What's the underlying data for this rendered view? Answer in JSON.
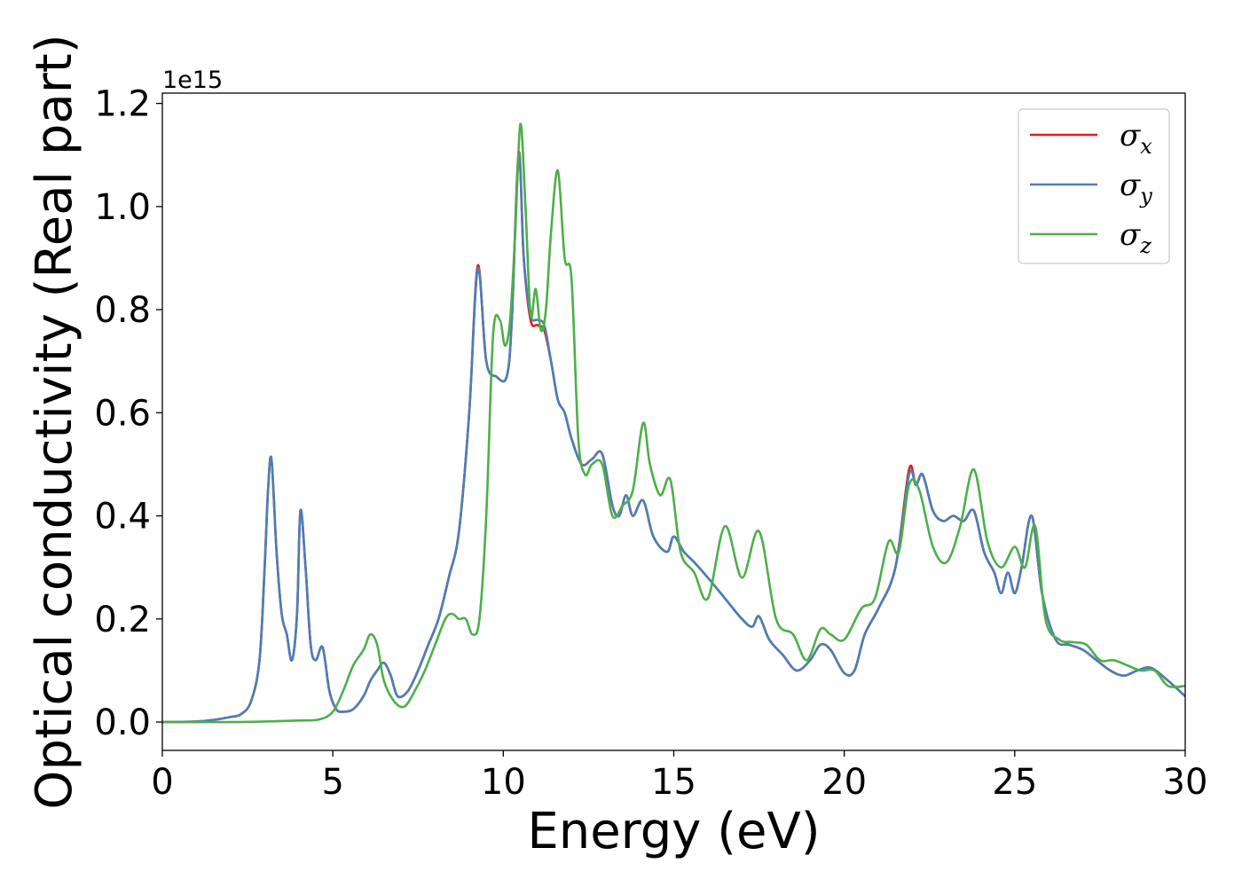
{
  "chart_data": {
    "type": "line",
    "xlabel": "Energy (eV)",
    "ylabel": "Optical conductivity (Real part)",
    "offset_label": "1e15",
    "y_scale_factor": 1000000000000000.0,
    "xlim": [
      0,
      30
    ],
    "ylim": [
      -0.055,
      1.22
    ],
    "xticks": [
      0,
      5,
      10,
      15,
      20,
      25,
      30
    ],
    "yticks": [
      0.0,
      0.2,
      0.4,
      0.6,
      0.8,
      1.0,
      1.2
    ],
    "ytick_labels": [
      "0.0",
      "0.2",
      "0.4",
      "0.6",
      "0.8",
      "1.0",
      "1.2"
    ],
    "grid": false,
    "legend_position": "top-right",
    "series": [
      {
        "name": "σx",
        "legend_base": "σ",
        "legend_sub": "x",
        "color": "#e41a1c",
        "x": [
          0,
          1,
          1.5,
          2,
          2.3,
          2.6,
          2.85,
          3.0,
          3.1,
          3.2,
          3.35,
          3.5,
          3.65,
          3.8,
          3.95,
          4.05,
          4.2,
          4.35,
          4.5,
          4.7,
          4.9,
          5.1,
          5.3,
          5.6,
          5.9,
          6.1,
          6.3,
          6.5,
          6.7,
          6.9,
          7.2,
          7.5,
          7.8,
          8.1,
          8.4,
          8.7,
          9.0,
          9.25,
          9.5,
          9.8,
          10.1,
          10.25,
          10.45,
          10.6,
          10.8,
          11.0,
          11.2,
          11.4,
          11.6,
          11.8,
          12.0,
          12.3,
          12.6,
          12.9,
          13.2,
          13.4,
          13.6,
          13.8,
          14.1,
          14.4,
          14.8,
          15.0,
          15.3,
          15.6,
          16.0,
          16.5,
          17.0,
          17.3,
          17.5,
          17.8,
          18.2,
          18.6,
          19.0,
          19.3,
          19.6,
          20.0,
          20.3,
          20.6,
          21.0,
          21.5,
          21.9,
          22.1,
          22.3,
          22.6,
          22.9,
          23.2,
          23.5,
          23.8,
          24.1,
          24.4,
          24.6,
          24.8,
          25.0,
          25.2,
          25.5,
          25.8,
          26.2,
          26.6,
          27.0,
          27.4,
          27.8,
          28.2,
          28.6,
          29.0,
          29.5,
          30.0
        ],
        "y": [
          0.0,
          0.001,
          0.004,
          0.01,
          0.015,
          0.04,
          0.12,
          0.3,
          0.45,
          0.51,
          0.33,
          0.21,
          0.17,
          0.12,
          0.21,
          0.41,
          0.3,
          0.15,
          0.12,
          0.145,
          0.06,
          0.025,
          0.02,
          0.025,
          0.05,
          0.08,
          0.1,
          0.115,
          0.09,
          0.05,
          0.06,
          0.1,
          0.15,
          0.2,
          0.28,
          0.37,
          0.6,
          0.885,
          0.7,
          0.67,
          0.67,
          0.78,
          1.105,
          0.9,
          0.78,
          0.77,
          0.76,
          0.7,
          0.625,
          0.6,
          0.55,
          0.5,
          0.51,
          0.52,
          0.42,
          0.4,
          0.44,
          0.4,
          0.43,
          0.36,
          0.33,
          0.36,
          0.33,
          0.31,
          0.28,
          0.24,
          0.2,
          0.185,
          0.205,
          0.16,
          0.13,
          0.1,
          0.12,
          0.15,
          0.14,
          0.095,
          0.1,
          0.17,
          0.22,
          0.3,
          0.49,
          0.46,
          0.48,
          0.41,
          0.39,
          0.4,
          0.39,
          0.41,
          0.33,
          0.29,
          0.25,
          0.29,
          0.25,
          0.3,
          0.4,
          0.25,
          0.16,
          0.15,
          0.14,
          0.12,
          0.1,
          0.09,
          0.1,
          0.105,
          0.08,
          0.05
        ]
      },
      {
        "name": "σy",
        "legend_base": "σ",
        "legend_sub": "y",
        "color": "#4a7fb5",
        "x": [
          0,
          1,
          1.5,
          2,
          2.3,
          2.6,
          2.85,
          3.0,
          3.1,
          3.2,
          3.35,
          3.5,
          3.65,
          3.8,
          3.95,
          4.05,
          4.2,
          4.35,
          4.5,
          4.7,
          4.9,
          5.1,
          5.3,
          5.6,
          5.9,
          6.1,
          6.3,
          6.5,
          6.7,
          6.9,
          7.2,
          7.5,
          7.8,
          8.1,
          8.4,
          8.7,
          9.0,
          9.25,
          9.5,
          9.8,
          10.1,
          10.25,
          10.45,
          10.6,
          10.8,
          11.0,
          11.2,
          11.4,
          11.6,
          11.8,
          12.0,
          12.3,
          12.6,
          12.9,
          13.2,
          13.4,
          13.6,
          13.8,
          14.1,
          14.4,
          14.8,
          15.0,
          15.3,
          15.6,
          16.0,
          16.5,
          17.0,
          17.3,
          17.5,
          17.8,
          18.2,
          18.6,
          19.0,
          19.3,
          19.6,
          20.0,
          20.3,
          20.6,
          21.0,
          21.5,
          21.9,
          22.1,
          22.3,
          22.6,
          22.9,
          23.2,
          23.5,
          23.8,
          24.1,
          24.4,
          24.6,
          24.8,
          25.0,
          25.2,
          25.5,
          25.8,
          26.2,
          26.6,
          27.0,
          27.4,
          27.8,
          28.2,
          28.6,
          29.0,
          29.5,
          30.0
        ],
        "y": [
          0.0,
          0.001,
          0.004,
          0.01,
          0.015,
          0.04,
          0.12,
          0.3,
          0.45,
          0.51,
          0.33,
          0.21,
          0.17,
          0.12,
          0.21,
          0.41,
          0.3,
          0.15,
          0.12,
          0.145,
          0.06,
          0.025,
          0.02,
          0.025,
          0.05,
          0.08,
          0.1,
          0.115,
          0.09,
          0.05,
          0.06,
          0.1,
          0.15,
          0.2,
          0.28,
          0.37,
          0.6,
          0.88,
          0.7,
          0.67,
          0.67,
          0.78,
          1.1,
          0.9,
          0.79,
          0.78,
          0.77,
          0.7,
          0.625,
          0.6,
          0.55,
          0.5,
          0.51,
          0.52,
          0.42,
          0.4,
          0.44,
          0.4,
          0.43,
          0.36,
          0.33,
          0.36,
          0.33,
          0.31,
          0.28,
          0.24,
          0.2,
          0.185,
          0.205,
          0.16,
          0.13,
          0.1,
          0.12,
          0.15,
          0.14,
          0.095,
          0.1,
          0.17,
          0.22,
          0.3,
          0.48,
          0.46,
          0.48,
          0.41,
          0.39,
          0.4,
          0.39,
          0.41,
          0.33,
          0.29,
          0.25,
          0.29,
          0.25,
          0.3,
          0.4,
          0.25,
          0.16,
          0.15,
          0.14,
          0.12,
          0.1,
          0.09,
          0.1,
          0.105,
          0.08,
          0.05
        ]
      },
      {
        "name": "σz",
        "legend_base": "σ",
        "legend_sub": "z",
        "color": "#4daf4a",
        "x": [
          0,
          2,
          3,
          4,
          4.6,
          5.0,
          5.3,
          5.6,
          5.9,
          6.1,
          6.3,
          6.5,
          6.8,
          7.1,
          7.4,
          7.7,
          8.0,
          8.3,
          8.5,
          8.7,
          8.9,
          9.1,
          9.3,
          9.5,
          9.7,
          9.9,
          10.05,
          10.2,
          10.35,
          10.5,
          10.65,
          10.8,
          10.95,
          11.1,
          11.25,
          11.4,
          11.6,
          11.8,
          12.0,
          12.2,
          12.4,
          12.6,
          12.9,
          13.2,
          13.5,
          13.8,
          14.1,
          14.3,
          14.6,
          14.9,
          15.2,
          15.6,
          16.0,
          16.5,
          17.0,
          17.5,
          18.0,
          18.5,
          18.9,
          19.3,
          19.6,
          20.0,
          20.5,
          20.9,
          21.3,
          21.6,
          21.9,
          22.2,
          22.6,
          23.0,
          23.4,
          23.8,
          24.2,
          24.6,
          25.0,
          25.3,
          25.6,
          25.9,
          26.3,
          26.7,
          27.1,
          27.5,
          27.9,
          28.3,
          28.7,
          29.1,
          29.5,
          30.0
        ],
        "y": [
          0.0,
          0.0,
          0.001,
          0.003,
          0.005,
          0.02,
          0.06,
          0.11,
          0.14,
          0.17,
          0.15,
          0.08,
          0.04,
          0.03,
          0.06,
          0.1,
          0.15,
          0.2,
          0.21,
          0.2,
          0.2,
          0.17,
          0.2,
          0.4,
          0.75,
          0.78,
          0.73,
          0.78,
          0.95,
          1.16,
          1.0,
          0.79,
          0.84,
          0.76,
          0.8,
          0.95,
          1.07,
          0.9,
          0.86,
          0.55,
          0.48,
          0.5,
          0.5,
          0.4,
          0.42,
          0.45,
          0.58,
          0.5,
          0.44,
          0.47,
          0.33,
          0.29,
          0.24,
          0.38,
          0.28,
          0.37,
          0.2,
          0.17,
          0.12,
          0.18,
          0.17,
          0.16,
          0.22,
          0.24,
          0.35,
          0.33,
          0.46,
          0.45,
          0.34,
          0.31,
          0.38,
          0.49,
          0.35,
          0.3,
          0.34,
          0.3,
          0.38,
          0.2,
          0.16,
          0.155,
          0.15,
          0.12,
          0.12,
          0.11,
          0.1,
          0.1,
          0.07,
          0.07
        ]
      }
    ]
  }
}
